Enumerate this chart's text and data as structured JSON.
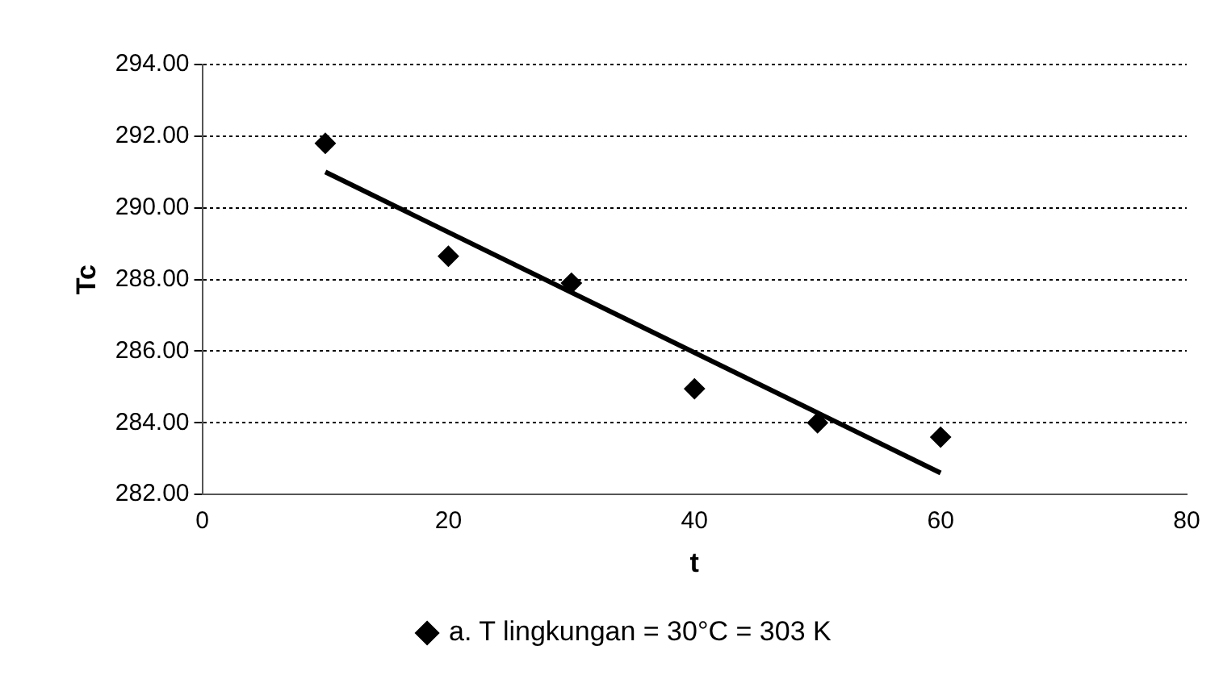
{
  "chart_data": {
    "type": "scatter",
    "xlabel": "t",
    "ylabel": "Tc",
    "marker": "diamond",
    "grid": "y",
    "legend": "bottom",
    "xlim": [
      0,
      80
    ],
    "xticks": [
      0,
      20,
      40,
      60,
      80
    ],
    "ylim": [
      282,
      294
    ],
    "yticks": [
      {
        "value": 282,
        "label": "282.00"
      },
      {
        "value": 284,
        "label": "284.00"
      },
      {
        "value": 286,
        "label": "286.00"
      },
      {
        "value": 288,
        "label": "288.00"
      },
      {
        "value": 290,
        "label": "290.00"
      },
      {
        "value": 292,
        "label": "292.00"
      },
      {
        "value": 294,
        "label": "294.00"
      }
    ],
    "series": [
      {
        "name": "a. T lingkungan = 30°C = 303 K",
        "type": "scatter",
        "color": "#000000",
        "x": [
          10,
          20,
          30,
          40,
          50,
          60
        ],
        "values": [
          291.8,
          288.65,
          287.9,
          284.95,
          284.0,
          283.6
        ]
      },
      {
        "type": "line",
        "color": "#000000",
        "marker": "none",
        "x": [
          10,
          60
        ],
        "values": [
          291.0,
          282.6
        ]
      }
    ]
  }
}
